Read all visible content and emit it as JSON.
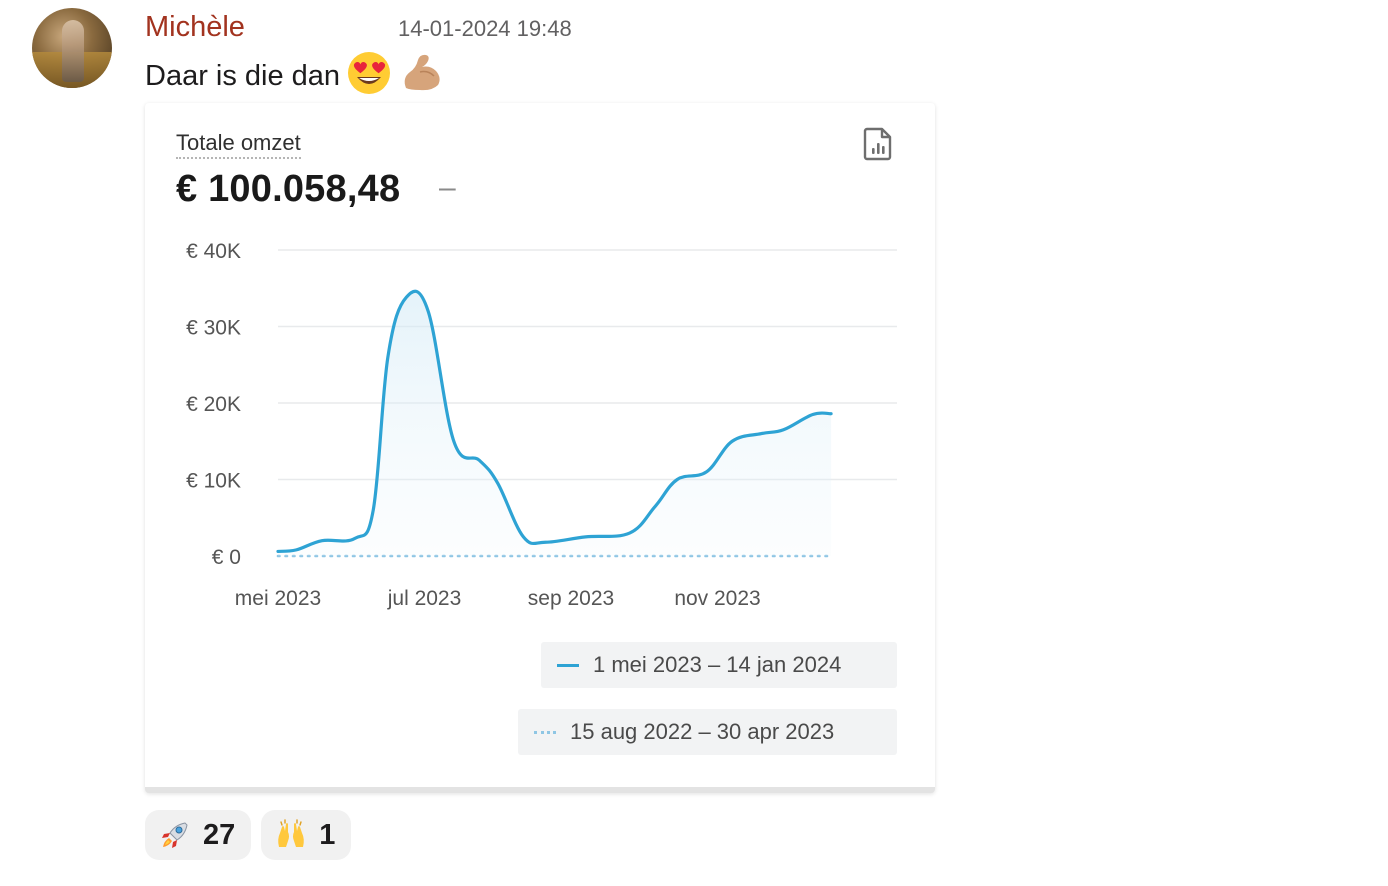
{
  "message": {
    "author": "Michèle",
    "timestamp": "14-01-2024 19:48",
    "text": "Daar is die dan",
    "emojis": [
      "smiling-face-with-heart-eyes-icon",
      "flexed-biceps-icon"
    ]
  },
  "card": {
    "title": "Totale omzet",
    "value": "€ 100.058,48",
    "change": "–",
    "report_icon": "report-chart-icon"
  },
  "chart_data": {
    "type": "line",
    "title": "",
    "xlabel": "",
    "ylabel": "",
    "y_ticks": [
      "€ 0",
      "€ 10K",
      "€ 20K",
      "€ 30K",
      "€ 40K"
    ],
    "y_tick_values": [
      0,
      10000,
      20000,
      30000,
      40000
    ],
    "ylim": [
      0,
      40000
    ],
    "x_tick_labels": [
      "mei 2023",
      "jul 2023",
      "sep 2023",
      "nov 2023"
    ],
    "x_tick_months": [
      0,
      2,
      4,
      6
    ],
    "xlim_months": [
      0,
      8.45
    ],
    "grid": true,
    "series": [
      {
        "name": "1 mei 2023 – 14 jan 2024",
        "color": "#2ea3d4",
        "style": "solid",
        "fill": true,
        "points": [
          [
            0.0,
            600
          ],
          [
            0.25,
            800
          ],
          [
            0.6,
            2000
          ],
          [
            1.05,
            2300
          ],
          [
            1.3,
            6000
          ],
          [
            1.5,
            26000
          ],
          [
            1.75,
            33800
          ],
          [
            2.05,
            32000
          ],
          [
            2.4,
            15000
          ],
          [
            2.75,
            12500
          ],
          [
            3.0,
            9500
          ],
          [
            3.35,
            2500
          ],
          [
            3.65,
            1800
          ],
          [
            4.2,
            2500
          ],
          [
            4.8,
            3000
          ],
          [
            5.15,
            6500
          ],
          [
            5.45,
            10000
          ],
          [
            5.85,
            11000
          ],
          [
            6.2,
            15000
          ],
          [
            6.6,
            16000
          ],
          [
            6.9,
            16500
          ],
          [
            7.3,
            18500
          ],
          [
            7.55,
            18600
          ]
        ]
      },
      {
        "name": "15 aug 2022 – 30 apr 2023",
        "color": "#8fc6e4",
        "style": "dotted",
        "fill": false,
        "points": [
          [
            0.0,
            0
          ],
          [
            7.55,
            0
          ]
        ]
      }
    ],
    "legend_position": "bottom-right"
  },
  "reactions": [
    {
      "emoji": "rocket-icon",
      "count": "27"
    },
    {
      "emoji": "raising-hands-icon",
      "count": "1"
    }
  ]
}
